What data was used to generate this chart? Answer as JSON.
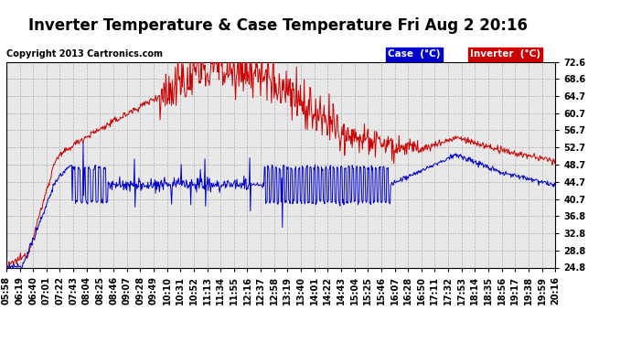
{
  "title": "Inverter Temperature & Case Temperature Fri Aug 2 20:16",
  "copyright": "Copyright 2013 Cartronics.com",
  "legend_case_label": "Case  (°C)",
  "legend_inverter_label": "Inverter  (°C)",
  "case_color": "#cc0000",
  "inverter_color": "#0000cc",
  "legend_case_bg": "#0000cc",
  "legend_inverter_bg": "#cc0000",
  "ylim_min": 24.8,
  "ylim_max": 72.6,
  "yticks": [
    24.8,
    28.8,
    32.8,
    36.8,
    40.7,
    44.7,
    48.7,
    52.7,
    56.7,
    60.7,
    64.7,
    68.6,
    72.6
  ],
  "background_color": "#ffffff",
  "plot_bg_color": "#e8e8e8",
  "grid_color": "#aaaaaa",
  "title_fontsize": 12,
  "tick_fontsize": 7,
  "copyright_fontsize": 7
}
